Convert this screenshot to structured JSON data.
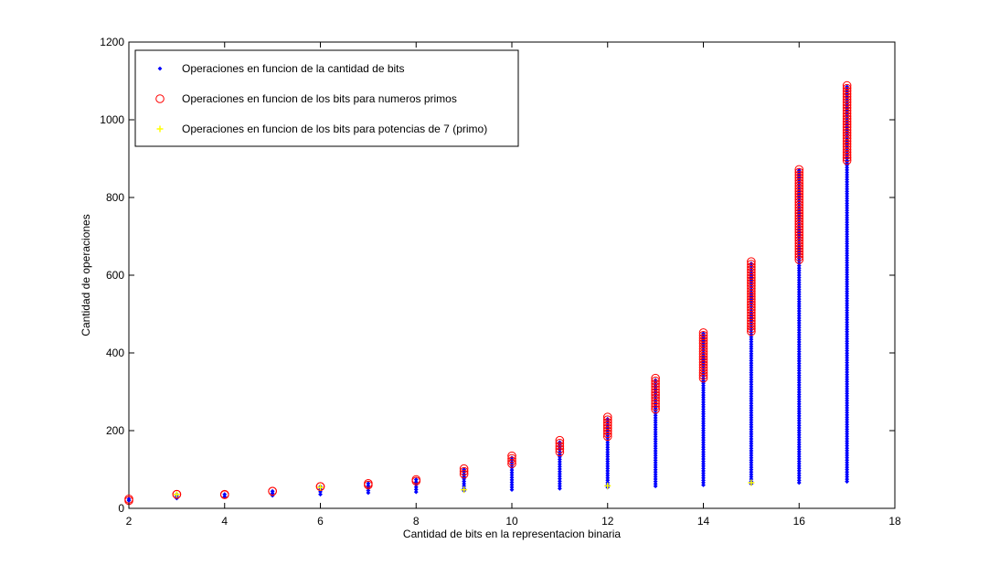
{
  "chart_data": {
    "type": "scatter",
    "title": "",
    "xlabel": "Cantidad de bits en la representacion binaria",
    "ylabel": "Cantidad de operaciones",
    "xlim": [
      2,
      18
    ],
    "ylim": [
      0,
      1200
    ],
    "xticks": [
      "2",
      "4",
      "6",
      "8",
      "10",
      "12",
      "14",
      "16",
      "18"
    ],
    "yticks": [
      "0",
      "200",
      "400",
      "600",
      "800",
      "1000",
      "1200"
    ],
    "grid": false,
    "legend_position": "top-left",
    "series": [
      {
        "name": "Operaciones en funcion de la cantidad de bits",
        "marker": "dot",
        "color": "#0000ff",
        "points": [
          {
            "x": 2,
            "y_min": 20,
            "y_max": 24
          },
          {
            "x": 3,
            "y_min": 26,
            "y_max": 36
          },
          {
            "x": 4,
            "y_min": 30,
            "y_max": 36
          },
          {
            "x": 5,
            "y_min": 33,
            "y_max": 44
          },
          {
            "x": 6,
            "y_min": 36,
            "y_max": 56
          },
          {
            "x": 7,
            "y_min": 40,
            "y_max": 64
          },
          {
            "x": 8,
            "y_min": 42,
            "y_max": 74
          },
          {
            "x": 9,
            "y_min": 45,
            "y_max": 100
          },
          {
            "x": 10,
            "y_min": 48,
            "y_max": 130
          },
          {
            "x": 11,
            "y_min": 51,
            "y_max": 170
          },
          {
            "x": 12,
            "y_min": 54,
            "y_max": 230
          },
          {
            "x": 13,
            "y_min": 57,
            "y_max": 330
          },
          {
            "x": 14,
            "y_min": 60,
            "y_max": 450
          },
          {
            "x": 15,
            "y_min": 63,
            "y_max": 630
          },
          {
            "x": 16,
            "y_min": 66,
            "y_max": 870
          },
          {
            "x": 17,
            "y_min": 69,
            "y_max": 1085
          }
        ]
      },
      {
        "name": "Operaciones en funcion de los bits para numeros primos",
        "marker": "circle",
        "color": "#ff0000",
        "points": [
          {
            "x": 2,
            "y_min": 20,
            "y_max": 24
          },
          {
            "x": 3,
            "y_min": 36,
            "y_max": 36
          },
          {
            "x": 4,
            "y_min": 35,
            "y_max": 36
          },
          {
            "x": 5,
            "y_min": 44,
            "y_max": 44
          },
          {
            "x": 6,
            "y_min": 56,
            "y_max": 56
          },
          {
            "x": 7,
            "y_min": 60,
            "y_max": 64
          },
          {
            "x": 8,
            "y_min": 70,
            "y_max": 74
          },
          {
            "x": 9,
            "y_min": 88,
            "y_max": 102
          },
          {
            "x": 10,
            "y_min": 115,
            "y_max": 135
          },
          {
            "x": 11,
            "y_min": 145,
            "y_max": 175
          },
          {
            "x": 12,
            "y_min": 185,
            "y_max": 235
          },
          {
            "x": 13,
            "y_min": 255,
            "y_max": 335
          },
          {
            "x": 14,
            "y_min": 335,
            "y_max": 452
          },
          {
            "x": 15,
            "y_min": 455,
            "y_max": 635
          },
          {
            "x": 16,
            "y_min": 640,
            "y_max": 872
          },
          {
            "x": 17,
            "y_min": 895,
            "y_max": 1088
          }
        ]
      },
      {
        "name": "Operaciones en funcion de los bits para potencias de 7 (primo)",
        "marker": "plus",
        "color": "#ffff00",
        "points": [
          {
            "x": 3,
            "y": 36
          },
          {
            "x": 6,
            "y": 54
          },
          {
            "x": 9,
            "y": 48
          },
          {
            "x": 12,
            "y": 58
          },
          {
            "x": 15,
            "y": 66
          }
        ]
      }
    ]
  }
}
